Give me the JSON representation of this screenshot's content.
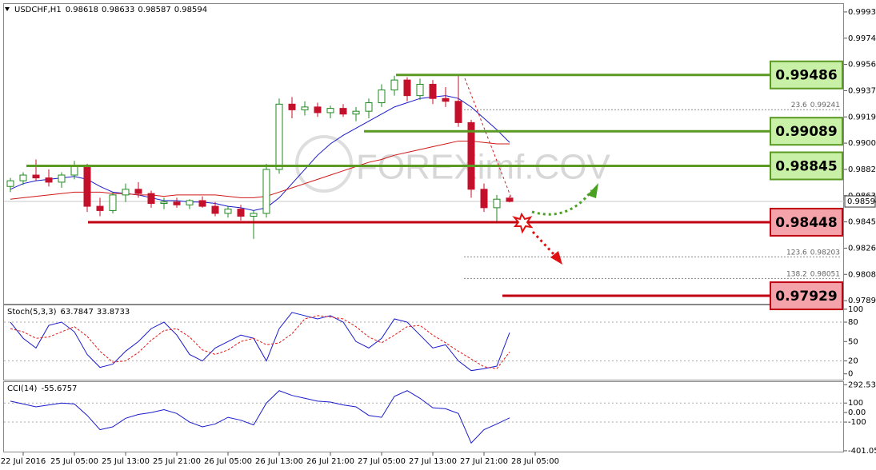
{
  "chart_data": [
    {
      "type": "candlestick",
      "title": "USDCHF,H1",
      "watermark": "FOREXimf.COV",
      "categories": [
        null,
        "22 Jul 2016",
        null,
        null,
        null,
        "25 Jul 05:00",
        null,
        null,
        null,
        "25 Jul 13:00",
        null,
        null,
        null,
        "25 Jul 21:00",
        null,
        null,
        null,
        "26 Jul 05:00",
        null,
        null,
        null,
        "26 Jul 13:00",
        null,
        null,
        null,
        "26 Jul 21:00",
        null,
        null,
        null,
        "27 Jul 05:00",
        null,
        null,
        null,
        "27 Jul 13:00",
        null,
        null,
        null,
        "27 Jul 21:00",
        null,
        null,
        null,
        "28 Jul 05:00"
      ],
      "open": [
        0.987,
        0.9874,
        0.9878,
        0.9876,
        0.9873,
        0.9878,
        0.9884,
        0.9856,
        0.9853,
        0.9864,
        0.9868,
        0.9865,
        0.9858,
        0.9859,
        0.9857,
        0.986,
        0.9856,
        0.9851,
        0.9854,
        0.9849,
        0.9851,
        0.9882,
        0.9928,
        0.9924,
        0.9926,
        0.9922,
        0.9925,
        0.9921,
        0.9923,
        0.9929,
        0.9938,
        0.9945,
        0.9934,
        0.9942,
        0.9932,
        0.993,
        0.9915,
        0.9868,
        0.9855,
        0.98618,
        null,
        null
      ],
      "high": [
        0.9876,
        0.988,
        0.9889,
        0.9882,
        0.988,
        0.9888,
        0.9886,
        0.9862,
        0.9866,
        0.9872,
        0.9873,
        0.9867,
        0.9862,
        0.9862,
        0.9861,
        0.9863,
        0.9859,
        0.9856,
        0.9857,
        0.9853,
        0.9886,
        0.9932,
        0.9933,
        0.993,
        0.9929,
        0.9927,
        0.9928,
        0.9926,
        0.9932,
        0.9942,
        0.9948,
        0.9947,
        0.9946,
        0.9945,
        0.994,
        0.99486,
        0.9917,
        0.9872,
        0.9864,
        0.98633,
        null,
        null
      ],
      "low": [
        0.9866,
        0.9871,
        0.9874,
        0.987,
        0.9869,
        0.9875,
        0.9852,
        0.9849,
        0.9851,
        0.9859,
        0.9862,
        0.9855,
        0.9854,
        0.9855,
        0.9854,
        0.9855,
        0.9849,
        0.9848,
        0.9846,
        0.9833,
        0.9848,
        0.9879,
        0.9918,
        0.992,
        0.9919,
        0.9918,
        0.9919,
        0.9916,
        0.9918,
        0.9926,
        0.9934,
        0.993,
        0.9931,
        0.9928,
        0.9926,
        0.9912,
        0.9862,
        0.9852,
        0.98448,
        0.98587,
        null,
        null
      ],
      "close": [
        0.9874,
        0.9878,
        0.9876,
        0.9873,
        0.9878,
        0.9884,
        0.9856,
        0.9853,
        0.9864,
        0.9868,
        0.9865,
        0.9858,
        0.9859,
        0.9857,
        0.986,
        0.9856,
        0.9851,
        0.9854,
        0.9849,
        0.9851,
        0.9882,
        0.9928,
        0.9924,
        0.9926,
        0.9922,
        0.9925,
        0.9921,
        0.9923,
        0.9929,
        0.9938,
        0.9945,
        0.9934,
        0.9942,
        0.9932,
        0.993,
        0.9915,
        0.9868,
        0.9855,
        0.9861,
        0.98594,
        null,
        null
      ],
      "up_color": "#1f8a1f",
      "down_color": "#c4102a",
      "moving_averages": [
        {
          "color": "#1a1acc",
          "values": [
            0.9868,
            0.9872,
            0.9874,
            0.9875,
            0.9876,
            0.9877,
            0.9875,
            0.987,
            0.9866,
            0.9865,
            0.9864,
            0.9862,
            0.986,
            0.986,
            0.9859,
            0.9859,
            0.9858,
            0.9856,
            0.9855,
            0.9853,
            0.9855,
            0.9862,
            0.9872,
            0.9882,
            0.9892,
            0.99,
            0.9906,
            0.9911,
            0.9916,
            0.9921,
            0.9926,
            0.9929,
            0.9932,
            0.9933,
            0.9934,
            0.9932,
            0.9926,
            0.9918,
            0.991,
            0.9901,
            null,
            null
          ]
        },
        {
          "color": "#d01818",
          "values": [
            0.9861,
            0.9862,
            0.9863,
            0.9864,
            0.9865,
            0.9866,
            0.9866,
            0.9866,
            0.9865,
            0.9865,
            0.9864,
            0.9864,
            0.9863,
            0.9864,
            0.9864,
            0.9864,
            0.9864,
            0.9863,
            0.9862,
            0.9862,
            0.9863,
            0.9866,
            0.9869,
            0.9872,
            0.9875,
            0.9878,
            0.9881,
            0.9884,
            0.9887,
            0.9889,
            0.9892,
            0.9894,
            0.9896,
            0.9898,
            0.99,
            0.9902,
            0.9902,
            0.9901,
            0.99,
            0.99,
            null,
            null
          ]
        }
      ],
      "ylim": [
        0.97873,
        0.99986
      ],
      "yticks": [
        {
          "value": 0.9993,
          "label": "0.99930"
        },
        {
          "value": 0.99745,
          "label": "0.99745"
        },
        {
          "value": 0.9956,
          "label": "0.99560"
        },
        {
          "value": 0.99375,
          "label": "0.99375"
        },
        {
          "value": 0.9919,
          "label": "0.99190"
        },
        {
          "value": 0.99005,
          "label": "0.99005"
        },
        {
          "value": 0.9882,
          "label": "0.98820"
        },
        {
          "value": 0.98635,
          "label": "0.98635"
        },
        {
          "value": 0.9845,
          "label": "0.98450"
        },
        {
          "value": 0.98265,
          "label": "0.98265"
        },
        {
          "value": 0.9808,
          "label": "0.98080"
        },
        {
          "value": 0.97895,
          "label": "0.97895"
        }
      ],
      "levels": [
        {
          "price": 0.99486,
          "color": "#5a9a23",
          "box": "#c8f0a6"
        },
        {
          "price": 0.99089,
          "color": "#5a9a23",
          "box": "#c8f0a6"
        },
        {
          "price": 0.98845,
          "color": "#5a9a23",
          "box": "#c8f0a6"
        },
        {
          "price": 0.98448,
          "color": "#c00010",
          "box": "#f4a3aa"
        },
        {
          "price": 0.97929,
          "color": "#c00010",
          "box": "#f4a3aa"
        }
      ],
      "fib_levels": [
        {
          "ratio": 23.6,
          "price": 0.99241
        },
        {
          "ratio": 123.6,
          "price": 0.98203
        },
        {
          "ratio": 138.2,
          "price": 0.98051
        }
      ]
    },
    {
      "type": "line",
      "title": "Stoch(5,3,3)",
      "series": [
        {
          "color": "#1a1acc",
          "values": [
            80,
            55,
            40,
            75,
            80,
            65,
            30,
            10,
            15,
            35,
            50,
            70,
            80,
            60,
            30,
            20,
            40,
            50,
            60,
            55,
            20,
            70,
            95,
            90,
            85,
            90,
            80,
            50,
            40,
            55,
            85,
            80,
            60,
            40,
            45,
            20,
            5,
            8,
            12,
            63.7847,
            null,
            null
          ]
        },
        {
          "color": "#e01818",
          "dashed": true,
          "values": [
            70,
            65,
            55,
            57,
            65,
            73,
            58,
            35,
            18,
            20,
            33,
            52,
            67,
            70,
            57,
            37,
            30,
            37,
            50,
            55,
            45,
            48,
            62,
            85,
            90,
            88,
            85,
            73,
            57,
            48,
            60,
            73,
            75,
            60,
            48,
            35,
            23,
            11,
            8,
            33.8733,
            null,
            null
          ]
        }
      ],
      "ylim": [
        -9,
        106
      ],
      "yticks": [
        100,
        80,
        50,
        20,
        0
      ],
      "levels": [
        80,
        20
      ]
    },
    {
      "type": "line",
      "title": "CCI(14)",
      "series": [
        {
          "color": "#1a1acc",
          "values": [
            120,
            90,
            60,
            80,
            100,
            90,
            -30,
            -180,
            -150,
            -60,
            -20,
            0,
            30,
            -10,
            -100,
            -150,
            -120,
            -50,
            -80,
            -130,
            100,
            230,
            180,
            150,
            120,
            110,
            80,
            60,
            -30,
            -50,
            170,
            230,
            150,
            50,
            40,
            -10,
            -320,
            -180,
            -120,
            -55.6757,
            null,
            null
          ]
        }
      ],
      "ylim": [
        -410,
        320
      ],
      "yticks": [
        292.533,
        100,
        {
          "value": 0,
          "label": "0.00"
        },
        -100,
        -401.055
      ],
      "levels": [
        100,
        -100
      ]
    }
  ]
}
